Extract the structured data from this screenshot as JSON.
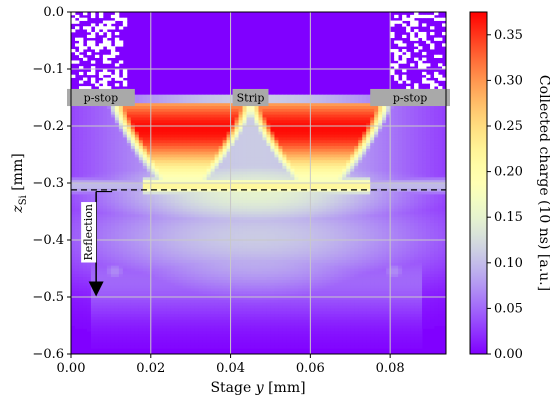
{
  "chart_data": {
    "type": "heatmap",
    "title": "",
    "xlabel_prefix": "Stage ",
    "xlabel_var": "y",
    "xlabel_suffix": " [mm]",
    "ylabel_var": "z",
    "ylabel_sub": "Si",
    "ylabel_suffix": " [mm]",
    "xlim": [
      0.0,
      0.094
    ],
    "ylim": [
      -0.6,
      0.0
    ],
    "x_ticks": [
      0.0,
      0.02,
      0.04,
      0.06,
      0.08
    ],
    "x_tick_labels": [
      "0.00",
      "0.02",
      "0.04",
      "0.06",
      "0.08"
    ],
    "y_ticks": [
      0.0,
      -0.1,
      -0.2,
      -0.3,
      -0.4,
      -0.5,
      -0.6
    ],
    "y_tick_labels": [
      "0.0",
      "−0.1",
      "−0.2",
      "−0.3",
      "−0.4",
      "−0.5",
      "−0.6"
    ],
    "grid": true,
    "colorbar": {
      "label": "Collected charge (10 ns) [a.u.]",
      "range": [
        0.0,
        0.375
      ],
      "ticks": [
        0.0,
        0.05,
        0.1,
        0.15,
        0.2,
        0.25,
        0.3,
        0.35
      ],
      "tick_labels": [
        "0.00",
        "0.05",
        "0.10",
        "0.15",
        "0.20",
        "0.25",
        "0.30",
        "0.35"
      ],
      "colormap": "rainbow"
    },
    "annotations": {
      "implants": [
        {
          "label": "p-stop",
          "x_range": [
            -0.001,
            0.016
          ],
          "z_range": [
            -0.165,
            -0.135
          ]
        },
        {
          "label": "Strip",
          "x_range": [
            0.0405,
            0.0495
          ],
          "z_range": [
            -0.165,
            -0.135
          ]
        },
        {
          "label": "p-stop",
          "x_range": [
            0.075,
            0.095
          ],
          "z_range": [
            -0.165,
            -0.135
          ]
        }
      ],
      "dashed_line": {
        "z": -0.312,
        "x_range": [
          0.0,
          0.094
        ]
      },
      "reflection": {
        "label": "Reflection",
        "x": 0.0063,
        "z_from": -0.315,
        "z_to": -0.5
      }
    },
    "regions": {
      "noise_top_left_x": [
        0.0,
        0.014
      ],
      "noise_top_right_x": [
        0.08,
        0.094
      ],
      "peak_lobes": [
        {
          "center_x": 0.028,
          "center_z": -0.205,
          "peak": 0.36
        },
        {
          "center_x": 0.062,
          "center_z": -0.205,
          "peak": 0.36
        }
      ]
    }
  },
  "colors": {
    "implant_fill": "#a9a9a9",
    "grid": "#c8c8c8",
    "dash": "#000000",
    "background_min": "#8000ff"
  }
}
